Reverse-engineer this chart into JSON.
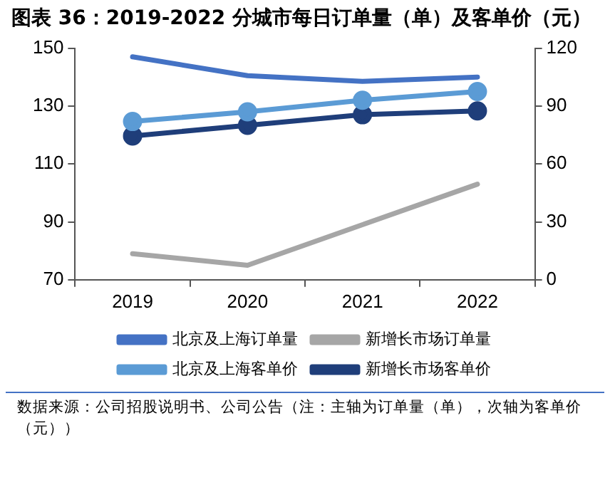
{
  "chart_data": {
    "type": "line",
    "title": "图表 36：2019-2022 分城市每日订单量（单）及客单价（元）",
    "categories": [
      "2019",
      "2020",
      "2021",
      "2022"
    ],
    "series": [
      {
        "name": "北京及上海订单量",
        "color": "#4472c4",
        "values": [
          147,
          140.5,
          138.5,
          140
        ],
        "marker": "none"
      },
      {
        "name": "新增长市场订单量",
        "color": "#a6a6a6",
        "values": [
          79,
          75,
          89,
          103
        ],
        "marker": "none"
      },
      {
        "name": "北京及上海客单价",
        "color": "#5b9bd5",
        "values": [
          82,
          87,
          93,
          97.5
        ],
        "axis": "y2",
        "marker": "circle"
      },
      {
        "name": "新增长市场客单价",
        "color": "#1f3e7a",
        "values": [
          74.5,
          80,
          85.5,
          87.5
        ],
        "axis": "y2",
        "marker": "circle"
      }
    ],
    "ylim": [
      70,
      150
    ],
    "yticks": [
      70,
      90,
      110,
      130,
      150
    ],
    "y2lim": [
      0,
      120
    ],
    "y2ticks": [
      0,
      30,
      60,
      90,
      120
    ],
    "grid": false,
    "legend": "bottom",
    "annotations": [
      "数据来源：公司招股说明书、公司公告（注：主轴为订单量（单），次轴为客单价（元））"
    ]
  }
}
